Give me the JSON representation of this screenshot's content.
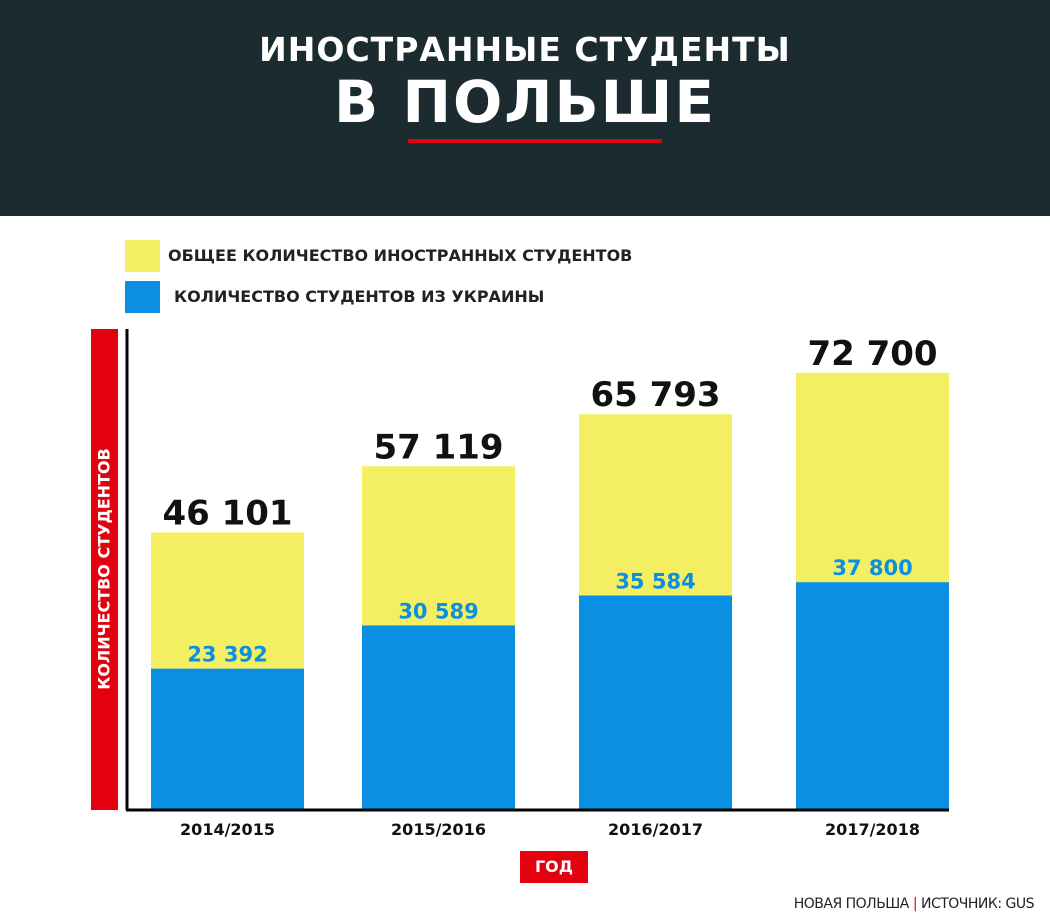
{
  "header": {
    "title_line1": "ИНОСТРАННЫЕ СТУДЕНТЫ",
    "title_line2": "В ПОЛЬШЕ"
  },
  "legend": {
    "total_label": "ОБЩЕЕ КОЛИЧЕСТВО ИНОСТРАННЫХ СТУДЕНТОВ",
    "ukraine_label": "КОЛИЧЕСТВО СТУДЕНТОВ ИЗ УКРАИНЫ"
  },
  "axes": {
    "ylabel": "КОЛИЧЕСТВО СТУДЕНТОВ",
    "xlabel": "ГОД"
  },
  "source": {
    "publisher": "НОВАЯ ПОЛЬША",
    "credit": "ИСТОЧНИК: GUS"
  },
  "colors": {
    "header_bg": "#1c2b2f",
    "accent_red": "#e3000f",
    "total_yellow": "#f4ef62",
    "ukraine_blue": "#0a8fe3"
  },
  "chart_data": {
    "type": "bar",
    "categories": [
      "2014/2015",
      "2015/2016",
      "2016/2017",
      "2017/2018"
    ],
    "series": [
      {
        "name": "ОБЩЕЕ КОЛИЧЕСТВО ИНОСТРАННЫХ СТУДЕНТОВ",
        "values": [
          46101,
          57119,
          65793,
          72700
        ],
        "labels": [
          "46 101",
          "57 119",
          "65 793",
          "72 700"
        ]
      },
      {
        "name": "КОЛИЧЕСТВО СТУДЕНТОВ ИЗ УКРАИНЫ",
        "values": [
          23392,
          30589,
          35584,
          37800
        ],
        "labels": [
          "23 392",
          "30 589",
          "35 584",
          "37 800"
        ]
      }
    ],
    "xlabel": "ГОД",
    "ylabel": "КОЛИЧЕСТВО СТУДЕНТОВ",
    "ylim": [
      0,
      80000
    ],
    "grid": false,
    "legend": "top-left"
  }
}
